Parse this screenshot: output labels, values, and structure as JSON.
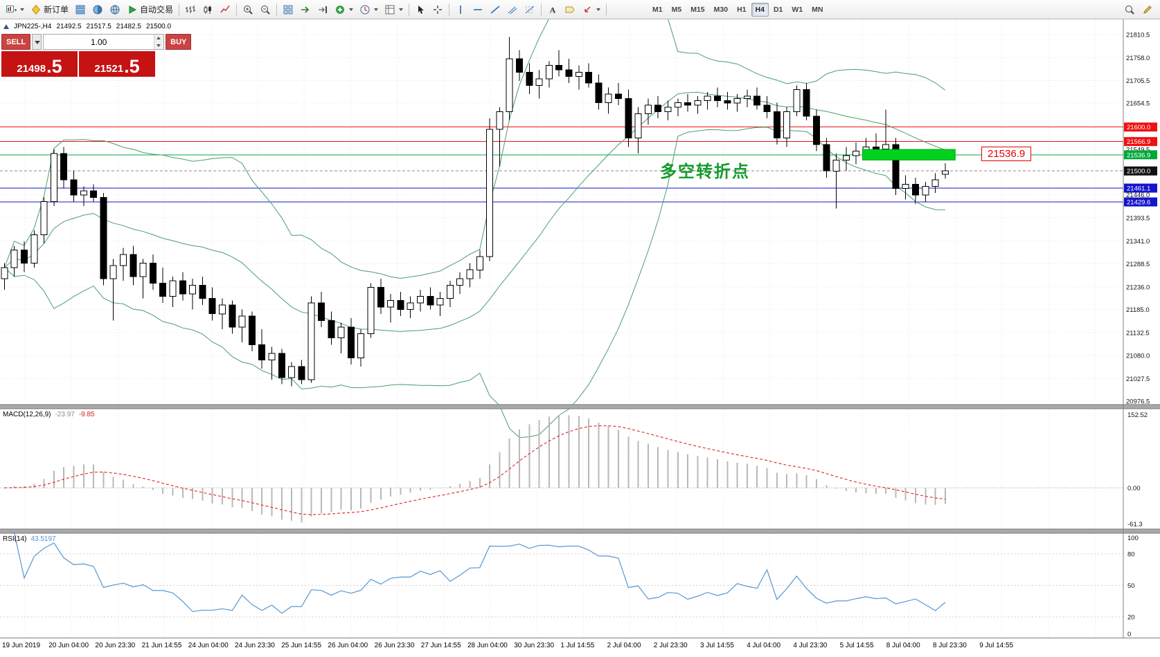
{
  "toolbar": {
    "buttons": [
      {
        "icon": "new-chart",
        "label": "",
        "dropdown": true
      },
      {
        "icon": "new-order",
        "label": "新订单",
        "dropdown": false
      },
      {
        "icon": "market-watch",
        "label": "",
        "dropdown": false
      },
      {
        "icon": "data-window",
        "label": "",
        "dropdown": false
      },
      {
        "icon": "navigator",
        "label": "",
        "dropdown": false
      },
      {
        "icon": "autotrading",
        "label": "自动交易",
        "dropdown": false
      },
      {
        "sep": true
      },
      {
        "icon": "bar-chart",
        "label": ""
      },
      {
        "icon": "candle-chart",
        "label": ""
      },
      {
        "icon": "line-chart",
        "label": ""
      },
      {
        "sep": true
      },
      {
        "icon": "zoom-in",
        "label": ""
      },
      {
        "icon": "zoom-out",
        "label": ""
      },
      {
        "sep": true
      },
      {
        "icon": "tile-windows",
        "label": ""
      },
      {
        "icon": "auto-scroll",
        "label": ""
      },
      {
        "icon": "chart-shift",
        "label": ""
      },
      {
        "icon": "indicators",
        "label": "",
        "dropdown": true
      },
      {
        "icon": "periods",
        "label": "",
        "dropdown": true
      },
      {
        "icon": "templates",
        "label": "",
        "dropdown": true
      },
      {
        "sep": true
      },
      {
        "icon": "cursor",
        "label": ""
      },
      {
        "icon": "crosshair",
        "label": ""
      },
      {
        "sep": true
      },
      {
        "icon": "vertical-line",
        "label": ""
      },
      {
        "icon": "horizontal-line",
        "label": ""
      },
      {
        "icon": "trendline",
        "label": ""
      },
      {
        "icon": "channel",
        "label": ""
      },
      {
        "icon": "fibonacci",
        "label": ""
      },
      {
        "sep": true
      },
      {
        "icon": "text",
        "label": ""
      },
      {
        "icon": "text-label",
        "label": ""
      },
      {
        "icon": "arrows",
        "label": "",
        "dropdown": true
      },
      {
        "sep": true
      }
    ],
    "timeframes": {
      "options": [
        "M1",
        "M5",
        "M15",
        "M30",
        "H1",
        "H4",
        "D1",
        "W1",
        "MN"
      ],
      "active": "H4"
    },
    "right_buttons": [
      {
        "icon": "search"
      },
      {
        "icon": "edit"
      }
    ]
  },
  "symbol_header": {
    "symbol": "JPN225-,H4",
    "open": "21492.5",
    "high": "21517.5",
    "low": "21482.5",
    "close": "21500.0"
  },
  "trade_panel": {
    "sell_label": "SELL",
    "buy_label": "BUY",
    "volume": "1.00",
    "sell_price_main": "21498",
    "sell_price_big": ".5",
    "buy_price_main": "21521",
    "buy_price_big": ".5"
  },
  "annotation": {
    "text": "多空转折点",
    "color": "#149a2c"
  },
  "callout": {
    "text": "21536.9"
  },
  "chart_data": {
    "type": "candlestick",
    "symbol": "JPN225-",
    "timeframe": "H4",
    "candles": [
      [
        21255,
        21290,
        21230,
        21280
      ],
      [
        21280,
        21330,
        21260,
        21320
      ],
      [
        21320,
        21340,
        21270,
        21290
      ],
      [
        21290,
        21365,
        21280,
        21355
      ],
      [
        21355,
        21440,
        21335,
        21430
      ],
      [
        21430,
        21550,
        21420,
        21540
      ],
      [
        21540,
        21555,
        21460,
        21480
      ],
      [
        21480,
        21500,
        21430,
        21445
      ],
      [
        21445,
        21465,
        21420,
        21455
      ],
      [
        21455,
        21470,
        21430,
        21440
      ],
      [
        21440,
        21450,
        21240,
        21255
      ],
      [
        21255,
        21300,
        21160,
        21285
      ],
      [
        21285,
        21325,
        21250,
        21310
      ],
      [
        21310,
        21330,
        21240,
        21260
      ],
      [
        21260,
        21300,
        21210,
        21290
      ],
      [
        21290,
        21310,
        21230,
        21245
      ],
      [
        21245,
        21280,
        21200,
        21215
      ],
      [
        21215,
        21260,
        21190,
        21250
      ],
      [
        21250,
        21270,
        21205,
        21220
      ],
      [
        21220,
        21255,
        21185,
        21240
      ],
      [
        21240,
        21260,
        21195,
        21210
      ],
      [
        21210,
        21235,
        21160,
        21175
      ],
      [
        21175,
        21210,
        21140,
        21195
      ],
      [
        21195,
        21205,
        21130,
        21145
      ],
      [
        21145,
        21185,
        21110,
        21170
      ],
      [
        21170,
        21180,
        21090,
        21105
      ],
      [
        21105,
        21140,
        21050,
        21070
      ],
      [
        21070,
        21100,
        21025,
        21085
      ],
      [
        21085,
        21095,
        21015,
        21030
      ],
      [
        21030,
        21065,
        21010,
        21055
      ],
      [
        21055,
        21070,
        21015,
        21025
      ],
      [
        21025,
        21215,
        21018,
        21200
      ],
      [
        21200,
        21225,
        21145,
        21160
      ],
      [
        21160,
        21180,
        21105,
        21120
      ],
      [
        21120,
        21155,
        21085,
        21145
      ],
      [
        21145,
        21165,
        21060,
        21075
      ],
      [
        21075,
        21140,
        21055,
        21130
      ],
      [
        21130,
        21245,
        21120,
        21235
      ],
      [
        21235,
        21255,
        21175,
        21190
      ],
      [
        21190,
        21220,
        21155,
        21205
      ],
      [
        21205,
        21225,
        21170,
        21185
      ],
      [
        21185,
        21215,
        21165,
        21200
      ],
      [
        21200,
        21230,
        21180,
        21215
      ],
      [
        21215,
        21235,
        21185,
        21195
      ],
      [
        21195,
        21225,
        21170,
        21210
      ],
      [
        21210,
        21250,
        21190,
        21240
      ],
      [
        21240,
        21270,
        21220,
        21255
      ],
      [
        21255,
        21290,
        21235,
        21275
      ],
      [
        21275,
        21320,
        21255,
        21305
      ],
      [
        21305,
        21620,
        21295,
        21595
      ],
      [
        21595,
        21645,
        21510,
        21635
      ],
      [
        21635,
        21805,
        21615,
        21755
      ],
      [
        21755,
        21775,
        21705,
        21725
      ],
      [
        21725,
        21745,
        21675,
        21695
      ],
      [
        21695,
        21730,
        21665,
        21710
      ],
      [
        21710,
        21750,
        21690,
        21740
      ],
      [
        21740,
        21775,
        21715,
        21730
      ],
      [
        21730,
        21755,
        21700,
        21715
      ],
      [
        21715,
        21740,
        21685,
        21725
      ],
      [
        21725,
        21745,
        21690,
        21700
      ],
      [
        21700,
        21720,
        21640,
        21655
      ],
      [
        21655,
        21690,
        21630,
        21675
      ],
      [
        21675,
        21700,
        21650,
        21665
      ],
      [
        21665,
        21685,
        21555,
        21575
      ],
      [
        21575,
        21645,
        21540,
        21630
      ],
      [
        21630,
        21665,
        21605,
        21650
      ],
      [
        21650,
        21670,
        21620,
        21635
      ],
      [
        21635,
        21660,
        21615,
        21645
      ],
      [
        21645,
        21665,
        21625,
        21655
      ],
      [
        21655,
        21675,
        21635,
        21650
      ],
      [
        21650,
        21670,
        21630,
        21660
      ],
      [
        21660,
        21680,
        21640,
        21670
      ],
      [
        21670,
        21690,
        21645,
        21660
      ],
      [
        21660,
        21680,
        21640,
        21655
      ],
      [
        21655,
        21675,
        21635,
        21665
      ],
      [
        21665,
        21685,
        21645,
        21670
      ],
      [
        21670,
        21690,
        21640,
        21650
      ],
      [
        21650,
        21670,
        21620,
        21635
      ],
      [
        21635,
        21655,
        21560,
        21575
      ],
      [
        21575,
        21645,
        21555,
        21635
      ],
      [
        21635,
        21695,
        21625,
        21685
      ],
      [
        21685,
        21700,
        21615,
        21625
      ],
      [
        21625,
        21640,
        21545,
        21560
      ],
      [
        21560,
        21575,
        21485,
        21500
      ],
      [
        21500,
        21540,
        21415,
        21525
      ],
      [
        21525,
        21555,
        21500,
        21535
      ],
      [
        21535,
        21565,
        21515,
        21545
      ],
      [
        21545,
        21575,
        21525,
        21555
      ],
      [
        21555,
        21585,
        21535,
        21550
      ],
      [
        21550,
        21640,
        21530,
        21560
      ],
      [
        21560,
        21575,
        21445,
        21460
      ],
      [
        21460,
        21490,
        21435,
        21470
      ],
      [
        21470,
        21485,
        21425,
        21445
      ],
      [
        21445,
        21475,
        21430,
        21465
      ],
      [
        21465,
        21495,
        21450,
        21480
      ],
      [
        21492.5,
        21517.5,
        21482.5,
        21500.0
      ]
    ],
    "price_axis": {
      "min": 20968.5,
      "max": 21845,
      "ticks": [
        "21810.5",
        "21758.0",
        "21705.5",
        "21654.5",
        "21549.5",
        "21446.0",
        "21393.5",
        "21341.0",
        "21288.5",
        "21236.0",
        "21185.0",
        "21132.5",
        "21080.0",
        "21027.5",
        "20976.5"
      ]
    },
    "hlines": [
      {
        "price": 21600.0,
        "label": "21600.0",
        "color": "#ee1111",
        "badge": "#ee1111",
        "style": "solid"
      },
      {
        "price": 21566.9,
        "label": "21566.9",
        "color": "#ee1111",
        "badge": "#ee1111",
        "style": "solid"
      },
      {
        "price": 21536.9,
        "label": "21536.9",
        "color": "#00a83c",
        "badge": "#00a83a",
        "style": "solid"
      },
      {
        "price": 21500.0,
        "label": "21500.0",
        "color": "#888888",
        "badge": "#111111",
        "style": "dash"
      },
      {
        "price": 21461.1,
        "label": "21461.1",
        "color": "#1414cc",
        "badge": "#1414cc",
        "style": "solid"
      },
      {
        "price": 21429.6,
        "label": "21429.6",
        "color": "#1414cc",
        "badge": "#1414cc",
        "style": "solid"
      }
    ],
    "rect": {
      "from_bar": 87,
      "to_bar": 96,
      "price_top": 21549,
      "price_bottom": 21525,
      "fill": "#00d21e"
    },
    "bollinger": {
      "period": 20,
      "deviation": 2,
      "color": "#4a9e6a"
    },
    "macd": {
      "label": "MACD(12,26,9)",
      "value": "-23.97",
      "signal": "-9.85",
      "axis_top": "152.52",
      "axis_zero": "0.00",
      "axis_bottom": "-61.3",
      "histogram_color": "#b8b8b8",
      "signal_color": "#e03232"
    },
    "rsi": {
      "label": "RSI(14)",
      "value": "43.5197",
      "levels": [
        80,
        50,
        20
      ],
      "axis": [
        "100",
        "80",
        "50",
        "20",
        "0"
      ],
      "line_color": "#5596d2"
    },
    "time_labels": [
      "19 Jun 2019",
      "20 Jun 04:00",
      "20 Jun 23:30",
      "21 Jun 14:55",
      "24 Jun 04:00",
      "24 Jun 23:30",
      "25 Jun 14:55",
      "26 Jun 04:00",
      "26 Jun 23:30",
      "27 Jun 14:55",
      "28 Jun 04:00",
      "30 Jun 23:30",
      "1 Jul 14:55",
      "2 Jul 04:00",
      "2 Jul 23:30",
      "3 Jul 14:55",
      "4 Jul 04:00",
      "4 Jul 23:30",
      "5 Jul 14:55",
      "8 Jul 04:00",
      "8 Jul 23:30",
      "9 Jul 14:55"
    ]
  }
}
